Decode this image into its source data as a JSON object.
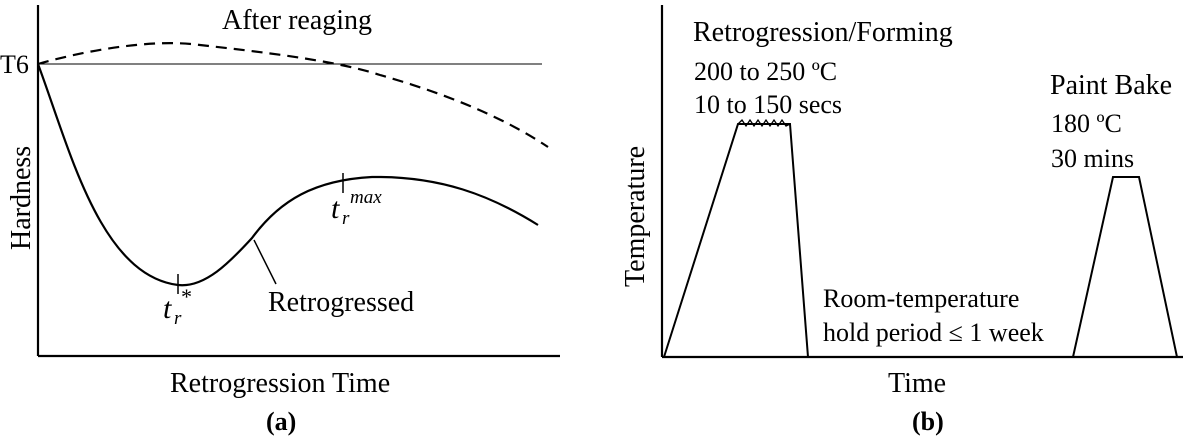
{
  "panel_a": {
    "caption": "(a)",
    "y_axis_label": "Hardness",
    "x_axis_label": "Retrogression Time",
    "t6_label": "T6",
    "after_reaging_label": "After reaging",
    "retrogressed_label": "Retrogressed",
    "t_min_label": {
      "base": "t",
      "sub": "r",
      "sup": "*"
    },
    "t_max_label": {
      "base": "t",
      "sub": "r",
      "sup": "max"
    }
  },
  "panel_b": {
    "caption": "(b)",
    "y_axis_label": "Temperature",
    "x_axis_label": "Time",
    "retrogression": {
      "title": "Retrogression/Forming",
      "temperature": "200 to 250 ºC",
      "duration": "10 to 150 secs"
    },
    "room_temp": {
      "line1": "Room-temperature",
      "line2": "hold period ≤ 1 week"
    },
    "paint_bake": {
      "title": "Paint Bake",
      "temperature": "180 ºC",
      "duration": "30 mins"
    }
  }
}
